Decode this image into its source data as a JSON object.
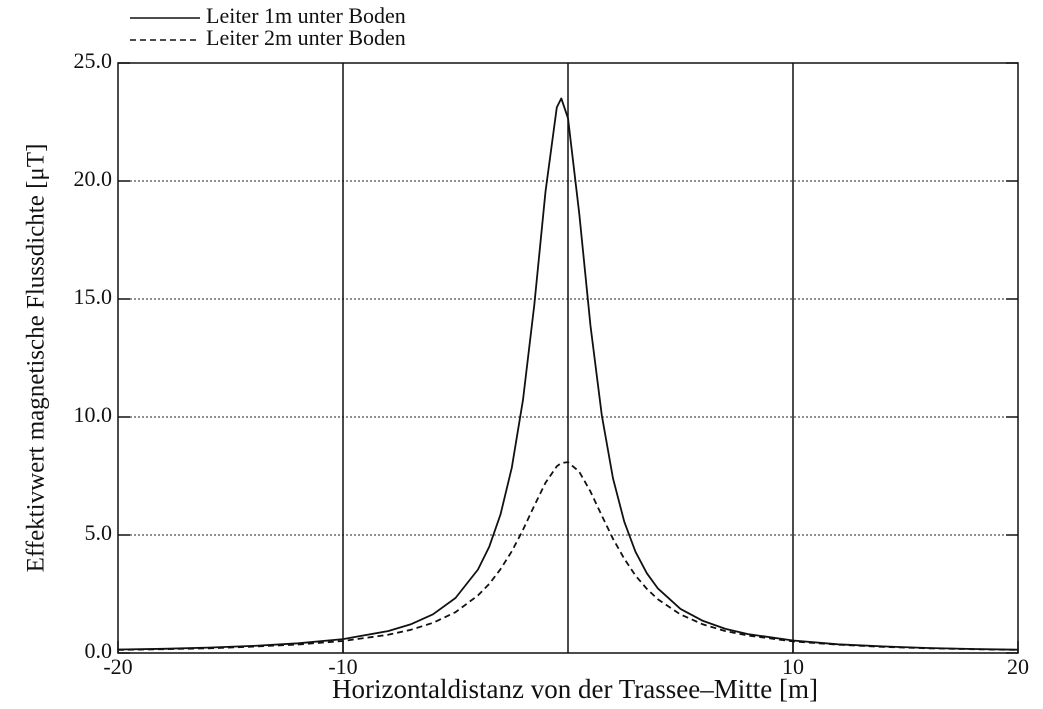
{
  "chart_data": {
    "type": "line",
    "xlabel": "Horizontaldistanz von der Trassee–Mitte [m]",
    "ylabel": "Effektivwert magnetische Flussdichte [μT]",
    "x": [
      -20,
      -18,
      -16,
      -14,
      -12,
      -10,
      -8,
      -7,
      -6,
      -5,
      -4,
      -3.5,
      -3,
      -2.5,
      -2,
      -1.5,
      -1,
      -0.5,
      -0.3,
      0,
      0.5,
      1,
      1.5,
      2,
      2.5,
      3,
      3.5,
      4,
      5,
      6,
      7,
      8,
      10,
      12,
      14,
      16,
      18,
      20
    ],
    "series": [
      {
        "name": "Leiter 1m unter Boden",
        "color": "#111111",
        "dash": "solid",
        "values": [
          0.15,
          0.18,
          0.23,
          0.3,
          0.41,
          0.59,
          0.93,
          1.21,
          1.64,
          2.33,
          3.54,
          4.51,
          5.87,
          7.85,
          10.73,
          14.75,
          19.55,
          23.12,
          23.5,
          22.66,
          18.6,
          13.86,
          10.07,
          7.4,
          5.56,
          4.29,
          3.38,
          2.73,
          1.87,
          1.36,
          1.02,
          0.8,
          0.53,
          0.37,
          0.28,
          0.21,
          0.17,
          0.14
        ]
      },
      {
        "name": "Leiter 2m unter Boden",
        "color": "#111111",
        "dash": "dashed",
        "values": [
          0.13,
          0.16,
          0.2,
          0.27,
          0.36,
          0.51,
          0.77,
          0.98,
          1.28,
          1.73,
          2.44,
          2.93,
          3.55,
          4.31,
          5.22,
          6.24,
          7.21,
          7.91,
          8.05,
          8.09,
          7.68,
          6.84,
          5.82,
          4.84,
          3.99,
          3.28,
          2.72,
          2.27,
          1.63,
          1.21,
          0.93,
          0.74,
          0.49,
          0.35,
          0.26,
          0.2,
          0.16,
          0.13
        ]
      }
    ],
    "xlim": [
      -20,
      20
    ],
    "xticks": [
      -20,
      -10,
      10,
      20
    ],
    "xgrid_lines": [
      -10,
      0,
      10
    ],
    "ylim": [
      0,
      25
    ],
    "yticks": [
      {
        "value": 0,
        "label": "0.0"
      },
      {
        "value": 5,
        "label": "5.0"
      },
      {
        "value": 10,
        "label": "10.0"
      },
      {
        "value": 15,
        "label": "15.0"
      },
      {
        "value": 20,
        "label": "20.0"
      },
      {
        "value": 25,
        "label": "25.0"
      }
    ],
    "grid": true,
    "legend": "top-left"
  }
}
